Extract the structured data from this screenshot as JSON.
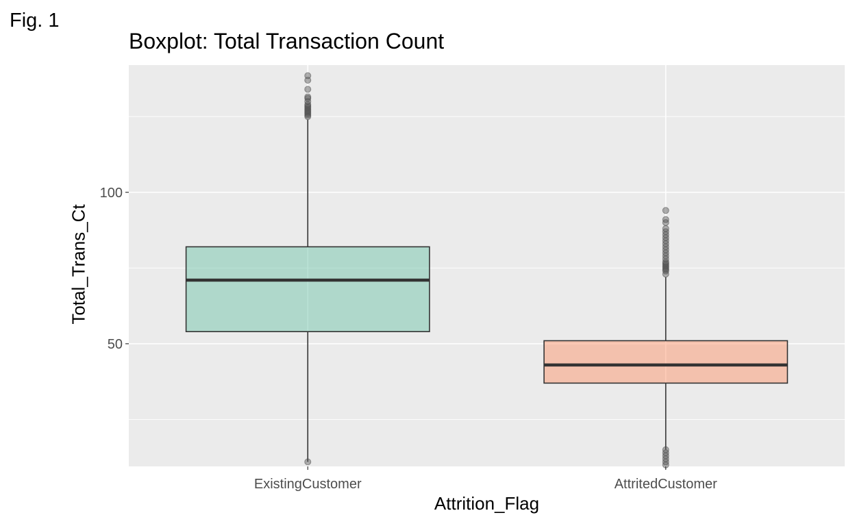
{
  "figure": {
    "label": "Fig. 1"
  },
  "chart_data": {
    "type": "boxplot",
    "title": "Boxplot: Total Transaction Count",
    "xlabel": "Attrition_Flag",
    "ylabel": "Total_Trans_Ct",
    "categories": [
      "ExistingCustomer",
      "AttritedCustomer"
    ],
    "ylim": [
      9.5,
      142
    ],
    "y_ticks": [
      50,
      100
    ],
    "grid": true,
    "legend": "none",
    "boxes": [
      {
        "category": "ExistingCustomer",
        "color": "#66c2a5",
        "q1": 54,
        "median": 71,
        "q3": 82,
        "whisker_low": 11,
        "whisker_high": 124,
        "outliers": [
          11,
          125,
          125.5,
          126,
          126.5,
          127,
          127.5,
          128,
          128.5,
          129,
          130,
          131,
          131.5,
          134,
          137,
          138.5
        ]
      },
      {
        "category": "AttritedCustomer",
        "color": "#fc8d62",
        "q1": 37,
        "median": 43,
        "q3": 51,
        "whisker_low": 15,
        "whisker_high": 72,
        "outliers": [
          10,
          11,
          12,
          13,
          14,
          15,
          73,
          74,
          74.5,
          75,
          75.5,
          76,
          76.5,
          77,
          78,
          79,
          80,
          81,
          82,
          83,
          84,
          85,
          86,
          87,
          88,
          90,
          91,
          94
        ]
      }
    ]
  }
}
